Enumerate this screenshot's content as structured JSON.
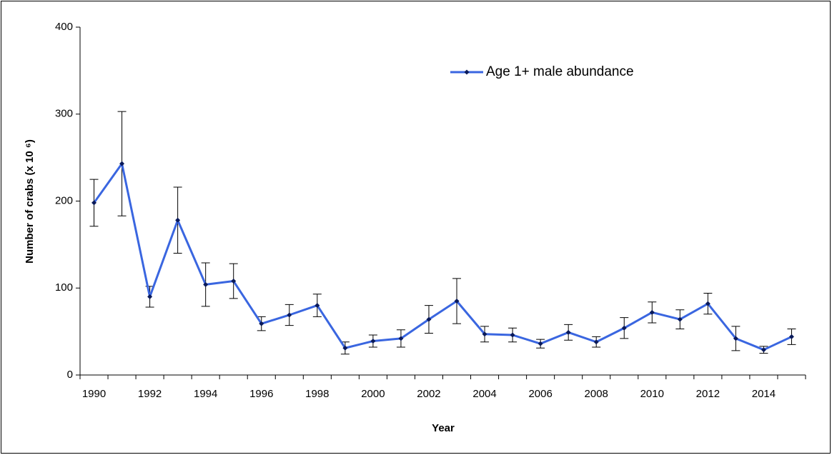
{
  "chart_data": {
    "type": "line",
    "categories": [
      "1990",
      null,
      "1992",
      null,
      "1994",
      null,
      "1996",
      null,
      "1998",
      null,
      "2000",
      null,
      "2002",
      null,
      "2004",
      null,
      "2006",
      null,
      "2008",
      null,
      "2010",
      null,
      "2012",
      null,
      "2014",
      null
    ],
    "series": [
      {
        "name": "Age 1+ male abundance",
        "color": "#3a66e0",
        "values": [
          198,
          243,
          90,
          178,
          104,
          108,
          59,
          69,
          80,
          31,
          39,
          42,
          64,
          85,
          47,
          46,
          36,
          49,
          38,
          54,
          72,
          64,
          82,
          42,
          29,
          44
        ],
        "errors": [
          27,
          60,
          12,
          38,
          25,
          20,
          8,
          12,
          13,
          7,
          7,
          10,
          16,
          26,
          9,
          8,
          5,
          9,
          6,
          12,
          12,
          11,
          12,
          14,
          4,
          9
        ]
      }
    ],
    "xlabel": "Year",
    "ylabel": "Number of crabs (x 10 ⁶)",
    "ylim": [
      0,
      400
    ],
    "yticks": [
      0,
      100,
      200,
      300,
      400
    ],
    "legend": "top-right"
  }
}
